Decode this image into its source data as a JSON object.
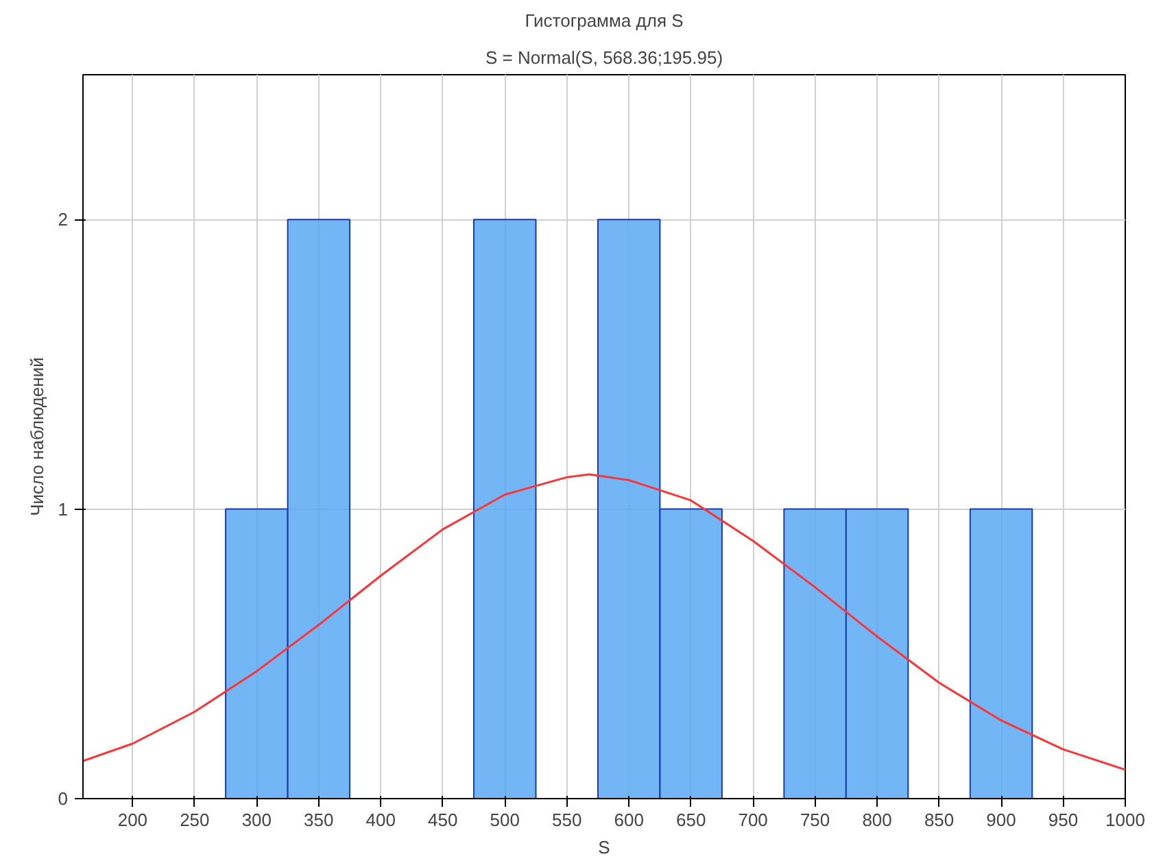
{
  "chart_data": {
    "type": "histogram",
    "title": "Гистограмма для S",
    "subtitle": "S = Normal(S, 568.36;195.95)",
    "xlabel": "S",
    "ylabel": "Число наблюдений",
    "xlim": [
      160,
      1000
    ],
    "xticks": [
      200,
      250,
      300,
      350,
      400,
      450,
      500,
      550,
      600,
      650,
      700,
      750,
      800,
      850,
      900,
      950,
      1000
    ],
    "ylim": [
      0,
      2.5
    ],
    "yticks": [
      0,
      1,
      2
    ],
    "grid": true,
    "series": [
      {
        "color": "#5aa9f5",
        "bins": [
          275,
          325,
          375,
          425,
          475,
          525,
          575,
          625,
          675,
          725,
          775,
          825,
          875,
          925
        ],
        "values": [
          1,
          2,
          0,
          0,
          2,
          0,
          2,
          1,
          0,
          1,
          1,
          0,
          1
        ]
      },
      {
        "type": "line",
        "color": "#ff3333",
        "x": [
          160,
          200,
          250,
          300,
          350,
          400,
          450,
          500,
          550,
          568,
          600,
          650,
          700,
          750,
          800,
          850,
          900,
          950,
          1000
        ],
        "values": [
          0.13,
          0.19,
          0.3,
          0.44,
          0.6,
          0.77,
          0.93,
          1.05,
          1.11,
          1.12,
          1.1,
          1.03,
          0.89,
          0.73,
          0.56,
          0.4,
          0.27,
          0.17,
          0.1
        ]
      }
    ]
  }
}
